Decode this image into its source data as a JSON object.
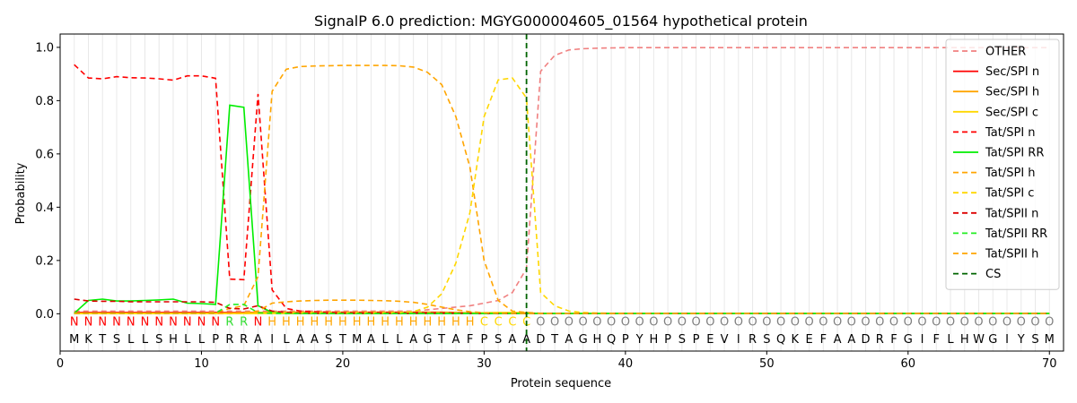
{
  "chart_data": {
    "type": "line",
    "title": "SignalP 6.0 prediction: MGYG000004605_01564 hypothetical protein",
    "xlabel": "Protein sequence",
    "ylabel": "Probability",
    "xlim": [
      0,
      71
    ],
    "ylim": [
      -0.14,
      1.05
    ],
    "x_ticks": [
      0,
      10,
      20,
      30,
      40,
      50,
      60,
      70
    ],
    "y_ticks": [
      0.0,
      0.2,
      0.4,
      0.6,
      0.8,
      1.0
    ],
    "x_tick_labels": [
      "0",
      "10",
      "20",
      "30",
      "40",
      "50",
      "60",
      "70"
    ],
    "y_tick_labels": [
      "0.0",
      "0.2",
      "0.4",
      "0.6",
      "0.8",
      "1.0"
    ],
    "grid": "vertical lines at each residue",
    "legend_position": "top-right",
    "sequence": [
      "M",
      "K",
      "T",
      "S",
      "L",
      "L",
      "S",
      "H",
      "L",
      "L",
      "P",
      "R",
      "R",
      "A",
      "I",
      "L",
      "A",
      "A",
      "S",
      "T",
      "M",
      "A",
      "L",
      "L",
      "A",
      "G",
      "T",
      "A",
      "F",
      "P",
      "S",
      "A",
      "A",
      "D",
      "T",
      "A",
      "G",
      "H",
      "Q",
      "P",
      "Y",
      "H",
      "P",
      "S",
      "P",
      "E",
      "V",
      "I",
      "R",
      "S",
      "Q",
      "K",
      "E",
      "F",
      "A",
      "A",
      "D",
      "R",
      "F",
      "G",
      "I",
      "F",
      "L",
      "H",
      "W",
      "G",
      "I",
      "Y",
      "S",
      "M"
    ],
    "labels": [
      "N",
      "N",
      "N",
      "N",
      "N",
      "N",
      "N",
      "N",
      "N",
      "N",
      "N",
      "R",
      "R",
      "N",
      "H",
      "H",
      "H",
      "H",
      "H",
      "H",
      "H",
      "H",
      "H",
      "H",
      "H",
      "H",
      "H",
      "H",
      "H",
      "C",
      "C",
      "C",
      "C",
      "O",
      "O",
      "O",
      "O",
      "O",
      "O",
      "O",
      "O",
      "O",
      "O",
      "O",
      "O",
      "O",
      "O",
      "O",
      "O",
      "O",
      "O",
      "O",
      "O",
      "O",
      "O",
      "O",
      "O",
      "O",
      "O",
      "O",
      "O",
      "O",
      "O",
      "O",
      "O",
      "O",
      "O",
      "O",
      "O",
      "O"
    ],
    "label_colors": {
      "N": "#ff0000",
      "R": "#33dd33",
      "H": "#ffa500",
      "C": "#ffd700",
      "O": "#808080"
    },
    "cleavage_site": 33,
    "series": [
      {
        "name": "OTHER",
        "color": "#f08080",
        "dash": "6,4",
        "values": [
          0.01,
          0.01,
          0.01,
          0.01,
          0.01,
          0.01,
          0.01,
          0.01,
          0.01,
          0.01,
          0.01,
          0.01,
          0.01,
          0.01,
          0.01,
          0.01,
          0.01,
          0.01,
          0.01,
          0.01,
          0.01,
          0.01,
          0.01,
          0.01,
          0.01,
          0.015,
          0.02,
          0.025,
          0.03,
          0.04,
          0.05,
          0.08,
          0.17,
          0.91,
          0.97,
          0.99,
          0.995,
          0.997,
          0.998,
          0.999,
          0.999,
          0.999,
          0.999,
          0.999,
          0.999,
          0.999,
          0.999,
          0.999,
          0.999,
          0.999,
          0.999,
          0.999,
          0.999,
          0.999,
          0.999,
          0.999,
          0.999,
          0.999,
          0.999,
          0.999,
          0.999,
          0.999,
          0.999,
          0.999,
          0.999,
          0.999,
          0.999,
          0.999,
          0.999,
          0.999
        ]
      },
      {
        "name": "Sec/SPI n",
        "color": "#ff0000",
        "dash": "",
        "values": [
          0.005,
          0.005,
          0.005,
          0.005,
          0.005,
          0.005,
          0.005,
          0.005,
          0.005,
          0.005,
          0.005,
          0.005,
          0.005,
          0.005,
          0.005,
          0.003,
          0.002,
          0.002,
          0.002,
          0.002,
          0.002,
          0.002,
          0.002,
          0.002,
          0.002,
          0.002,
          0.002,
          0.002,
          0.002,
          0.002,
          0.002,
          0.002,
          0.002,
          0.001,
          0.001,
          0.001,
          0.001,
          0.001,
          0.001,
          0.001,
          0.001,
          0.001,
          0.001,
          0.001,
          0.001,
          0.001,
          0.001,
          0.001,
          0.001,
          0.001,
          0.001,
          0.001,
          0.001,
          0.001,
          0.001,
          0.001,
          0.001,
          0.001,
          0.001,
          0.001,
          0.001,
          0.001,
          0.001,
          0.001,
          0.001,
          0.001,
          0.001,
          0.001,
          0.001,
          0.001
        ]
      },
      {
        "name": "Sec/SPI h",
        "color": "#ffa500",
        "dash": "",
        "values": [
          0.002,
          0.002,
          0.002,
          0.002,
          0.002,
          0.002,
          0.002,
          0.002,
          0.002,
          0.002,
          0.002,
          0.003,
          0.003,
          0.005,
          0.006,
          0.006,
          0.006,
          0.006,
          0.006,
          0.006,
          0.006,
          0.006,
          0.006,
          0.006,
          0.006,
          0.006,
          0.006,
          0.005,
          0.004,
          0.003,
          0.002,
          0.002,
          0.002,
          0.001,
          0.001,
          0.001,
          0.001,
          0.001,
          0.001,
          0.001,
          0.001,
          0.001,
          0.001,
          0.001,
          0.001,
          0.001,
          0.001,
          0.001,
          0.001,
          0.001,
          0.001,
          0.001,
          0.001,
          0.001,
          0.001,
          0.001,
          0.001,
          0.001,
          0.001,
          0.001,
          0.001,
          0.001,
          0.001,
          0.001,
          0.001,
          0.001,
          0.001,
          0.001,
          0.001,
          0.001
        ]
      },
      {
        "name": "Sec/SPI c",
        "color": "#ffd700",
        "dash": "",
        "values": [
          0.001,
          0.001,
          0.001,
          0.001,
          0.001,
          0.001,
          0.001,
          0.001,
          0.001,
          0.001,
          0.001,
          0.001,
          0.001,
          0.001,
          0.001,
          0.001,
          0.001,
          0.001,
          0.001,
          0.001,
          0.001,
          0.001,
          0.001,
          0.001,
          0.001,
          0.001,
          0.002,
          0.002,
          0.003,
          0.004,
          0.005,
          0.005,
          0.004,
          0.001,
          0.001,
          0.001,
          0.001,
          0.001,
          0.001,
          0.001,
          0.001,
          0.001,
          0.001,
          0.001,
          0.001,
          0.001,
          0.001,
          0.001,
          0.001,
          0.001,
          0.001,
          0.001,
          0.001,
          0.001,
          0.001,
          0.001,
          0.001,
          0.001,
          0.001,
          0.001,
          0.001,
          0.001,
          0.001,
          0.001,
          0.001,
          0.001,
          0.001,
          0.001,
          0.001,
          0.001
        ]
      },
      {
        "name": "Tat/SPI n",
        "color": "#ff0000",
        "dash": "6,4",
        "values": [
          0.935,
          0.885,
          0.882,
          0.89,
          0.886,
          0.885,
          0.882,
          0.877,
          0.893,
          0.893,
          0.884,
          0.13,
          0.128,
          0.825,
          0.09,
          0.02,
          0.01,
          0.008,
          0.006,
          0.005,
          0.005,
          0.005,
          0.005,
          0.005,
          0.005,
          0.004,
          0.004,
          0.003,
          0.003,
          0.002,
          0.002,
          0.002,
          0.001,
          0.001,
          0.001,
          0.001,
          0.001,
          0.001,
          0.001,
          0.001,
          0.001,
          0.001,
          0.001,
          0.001,
          0.001,
          0.001,
          0.001,
          0.001,
          0.001,
          0.001,
          0.001,
          0.001,
          0.001,
          0.001,
          0.001,
          0.001,
          0.001,
          0.001,
          0.001,
          0.001,
          0.001,
          0.001,
          0.001,
          0.001,
          0.001,
          0.001,
          0.001,
          0.001,
          0.001,
          0.001
        ]
      },
      {
        "name": "Tat/SPI RR",
        "color": "#00ee00",
        "dash": "",
        "values": [
          0.002,
          0.05,
          0.055,
          0.048,
          0.048,
          0.05,
          0.052,
          0.055,
          0.04,
          0.038,
          0.035,
          0.783,
          0.775,
          0.03,
          0.005,
          0.002,
          0.001,
          0.001,
          0.001,
          0.001,
          0.001,
          0.001,
          0.001,
          0.001,
          0.001,
          0.001,
          0.001,
          0.001,
          0.001,
          0.001,
          0.001,
          0.001,
          0.001,
          0.001,
          0.001,
          0.001,
          0.001,
          0.001,
          0.001,
          0.001,
          0.001,
          0.001,
          0.001,
          0.001,
          0.001,
          0.001,
          0.001,
          0.001,
          0.001,
          0.001,
          0.001,
          0.001,
          0.001,
          0.001,
          0.001,
          0.001,
          0.001,
          0.001,
          0.001,
          0.001,
          0.001,
          0.001,
          0.001,
          0.001,
          0.001,
          0.001,
          0.001,
          0.001,
          0.001,
          0.001
        ]
      },
      {
        "name": "Tat/SPI h",
        "color": "#ffa500",
        "dash": "6,4",
        "values": [
          0.003,
          0.003,
          0.003,
          0.003,
          0.003,
          0.003,
          0.003,
          0.003,
          0.003,
          0.003,
          0.005,
          0.02,
          0.03,
          0.14,
          0.835,
          0.918,
          0.928,
          0.93,
          0.931,
          0.932,
          0.932,
          0.932,
          0.932,
          0.931,
          0.926,
          0.906,
          0.86,
          0.74,
          0.55,
          0.2,
          0.05,
          0.01,
          0.005,
          0.002,
          0.001,
          0.001,
          0.001,
          0.001,
          0.001,
          0.001,
          0.001,
          0.001,
          0.001,
          0.001,
          0.001,
          0.001,
          0.001,
          0.001,
          0.001,
          0.001,
          0.001,
          0.001,
          0.001,
          0.001,
          0.001,
          0.001,
          0.001,
          0.001,
          0.001,
          0.001,
          0.001,
          0.001,
          0.001,
          0.001,
          0.001,
          0.001,
          0.001,
          0.001,
          0.001,
          0.001
        ]
      },
      {
        "name": "Tat/SPI c",
        "color": "#ffd700",
        "dash": "6,4",
        "values": [
          0.001,
          0.001,
          0.001,
          0.001,
          0.001,
          0.001,
          0.001,
          0.001,
          0.001,
          0.001,
          0.001,
          0.001,
          0.001,
          0.002,
          0.003,
          0.003,
          0.003,
          0.003,
          0.003,
          0.003,
          0.003,
          0.003,
          0.003,
          0.004,
          0.008,
          0.025,
          0.075,
          0.19,
          0.38,
          0.74,
          0.878,
          0.885,
          0.81,
          0.08,
          0.03,
          0.01,
          0.005,
          0.003,
          0.002,
          0.001,
          0.001,
          0.001,
          0.001,
          0.001,
          0.001,
          0.001,
          0.001,
          0.001,
          0.001,
          0.001,
          0.001,
          0.001,
          0.001,
          0.001,
          0.001,
          0.001,
          0.001,
          0.001,
          0.001,
          0.001,
          0.001,
          0.001,
          0.001,
          0.001,
          0.001,
          0.001,
          0.001,
          0.001,
          0.001,
          0.001
        ]
      },
      {
        "name": "Tat/SPII n",
        "color": "#dd0000",
        "dash": "6,4",
        "values": [
          0.055,
          0.048,
          0.047,
          0.047,
          0.045,
          0.045,
          0.045,
          0.045,
          0.045,
          0.045,
          0.043,
          0.02,
          0.018,
          0.03,
          0.01,
          0.005,
          0.003,
          0.002,
          0.002,
          0.002,
          0.002,
          0.002,
          0.002,
          0.002,
          0.002,
          0.002,
          0.002,
          0.002,
          0.002,
          0.001,
          0.001,
          0.001,
          0.001,
          0.001,
          0.001,
          0.001,
          0.001,
          0.001,
          0.001,
          0.001,
          0.001,
          0.001,
          0.001,
          0.001,
          0.001,
          0.001,
          0.001,
          0.001,
          0.001,
          0.001,
          0.001,
          0.001,
          0.001,
          0.001,
          0.001,
          0.001,
          0.001,
          0.001,
          0.001,
          0.001,
          0.001,
          0.001,
          0.001,
          0.001,
          0.001,
          0.001,
          0.001,
          0.001,
          0.001,
          0.001
        ]
      },
      {
        "name": "Tat/SPII RR",
        "color": "#22ee22",
        "dash": "6,4",
        "values": [
          0.001,
          0.002,
          0.002,
          0.002,
          0.002,
          0.002,
          0.002,
          0.002,
          0.002,
          0.002,
          0.002,
          0.035,
          0.035,
          0.004,
          0.001,
          0.001,
          0.001,
          0.001,
          0.001,
          0.001,
          0.001,
          0.001,
          0.001,
          0.001,
          0.001,
          0.001,
          0.001,
          0.001,
          0.001,
          0.001,
          0.001,
          0.001,
          0.001,
          0.001,
          0.001,
          0.001,
          0.001,
          0.001,
          0.001,
          0.001,
          0.001,
          0.001,
          0.001,
          0.001,
          0.001,
          0.001,
          0.001,
          0.001,
          0.001,
          0.001,
          0.001,
          0.001,
          0.001,
          0.001,
          0.001,
          0.001,
          0.001,
          0.001,
          0.001,
          0.001,
          0.001,
          0.001,
          0.001,
          0.001,
          0.001,
          0.001,
          0.001,
          0.001,
          0.001,
          0.001
        ]
      },
      {
        "name": "Tat/SPII h",
        "color": "#ffa500",
        "dash": "6,4",
        "values": [
          0.001,
          0.001,
          0.001,
          0.001,
          0.001,
          0.001,
          0.001,
          0.001,
          0.001,
          0.001,
          0.001,
          0.003,
          0.005,
          0.01,
          0.04,
          0.045,
          0.048,
          0.05,
          0.051,
          0.051,
          0.051,
          0.05,
          0.049,
          0.047,
          0.043,
          0.035,
          0.025,
          0.015,
          0.008,
          0.004,
          0.002,
          0.001,
          0.001,
          0.001,
          0.001,
          0.001,
          0.001,
          0.001,
          0.001,
          0.001,
          0.001,
          0.001,
          0.001,
          0.001,
          0.001,
          0.001,
          0.001,
          0.001,
          0.001,
          0.001,
          0.001,
          0.001,
          0.001,
          0.001,
          0.001,
          0.001,
          0.001,
          0.001,
          0.001,
          0.001,
          0.001,
          0.001,
          0.001,
          0.001,
          0.001,
          0.001,
          0.001,
          0.001,
          0.001,
          0.001
        ]
      }
    ],
    "cs_legend": {
      "name": "CS",
      "color": "#006400",
      "dash": "6,4"
    }
  }
}
